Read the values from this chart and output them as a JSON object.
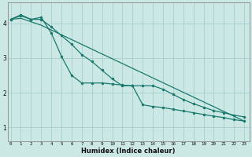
{
  "xlabel": "Humidex (Indice chaleur)",
  "bg_color": "#cce8e5",
  "grid_color": "#aad4d0",
  "line_color": "#1a7a6e",
  "x_ticks": [
    0,
    1,
    2,
    3,
    4,
    5,
    6,
    7,
    8,
    9,
    10,
    11,
    12,
    13,
    14,
    15,
    16,
    17,
    18,
    19,
    20,
    21,
    22,
    23
  ],
  "ylim": [
    0.6,
    4.6
  ],
  "xlim": [
    -0.3,
    23.5
  ],
  "curve1_x": [
    0,
    1,
    2,
    3,
    4,
    5,
    6,
    7,
    8,
    9,
    10,
    11,
    12,
    13,
    14,
    15,
    16,
    17,
    18,
    19,
    20,
    21,
    22,
    23
  ],
  "curve1_y": [
    4.12,
    4.25,
    4.12,
    4.12,
    3.9,
    3.65,
    3.4,
    3.1,
    2.9,
    2.65,
    2.4,
    2.2,
    2.2,
    2.2,
    2.2,
    2.1,
    1.95,
    1.8,
    1.68,
    1.58,
    1.48,
    1.42,
    1.35,
    1.3
  ],
  "curve2_x": [
    0,
    1,
    2,
    3,
    4,
    5,
    6,
    7,
    8,
    9,
    10,
    11,
    12,
    13,
    14,
    15,
    16,
    17,
    18,
    19,
    20,
    21,
    22,
    23
  ],
  "curve2_y": [
    4.12,
    4.22,
    4.12,
    4.18,
    3.72,
    3.05,
    2.5,
    2.28,
    2.28,
    2.28,
    2.25,
    2.22,
    2.2,
    1.65,
    1.6,
    1.57,
    1.52,
    1.47,
    1.42,
    1.37,
    1.32,
    1.28,
    1.22,
    1.18
  ],
  "curve3_x": [
    0,
    1,
    2,
    3,
    23
  ],
  "curve3_y": [
    4.12,
    4.15,
    4.05,
    3.95,
    1.18
  ]
}
